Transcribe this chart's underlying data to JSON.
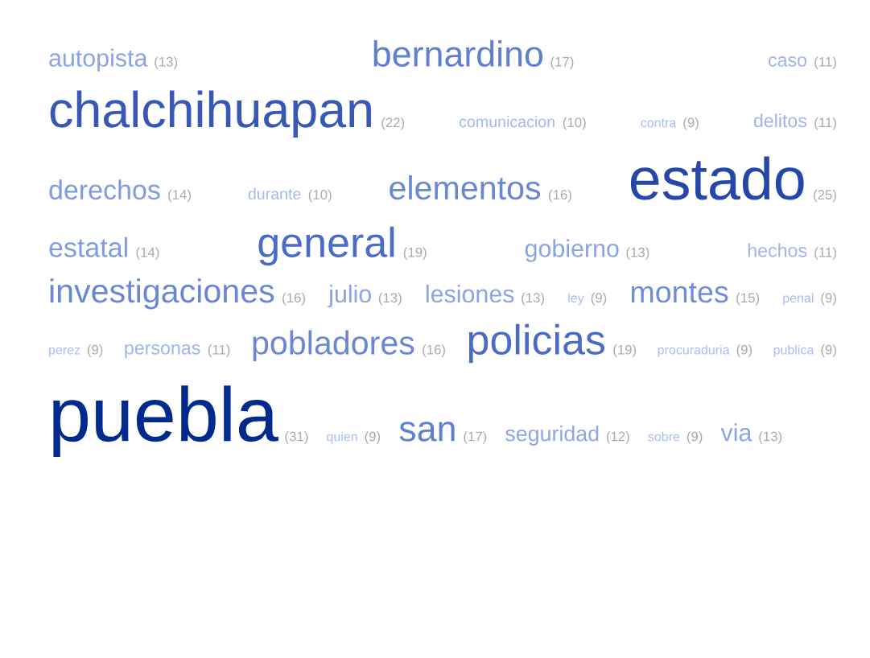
{
  "chart_data": {
    "type": "other",
    "categories": [
      "autopista",
      "bernardino",
      "caso",
      "chalchihuapan",
      "comunicacion",
      "contra",
      "delitos",
      "derechos",
      "durante",
      "elementos",
      "estado",
      "estatal",
      "general",
      "gobierno",
      "hechos",
      "investigaciones",
      "julio",
      "lesiones",
      "ley",
      "montes",
      "penal",
      "perez",
      "personas",
      "pobladores",
      "policias",
      "procuraduria",
      "publica",
      "puebla",
      "quien",
      "san",
      "seguridad",
      "sobre",
      "via"
    ],
    "values": [
      13,
      17,
      11,
      22,
      10,
      9,
      11,
      14,
      10,
      16,
      25,
      14,
      19,
      13,
      11,
      16,
      13,
      13,
      9,
      15,
      9,
      9,
      11,
      16,
      19,
      9,
      9,
      31,
      9,
      17,
      12,
      9,
      13
    ],
    "value_labels": [
      "(13)",
      "(17)",
      "(11)",
      "(22)",
      "(10)",
      "(9)",
      "(11)",
      "(14)",
      "(10)",
      "(16)",
      "(25)",
      "(14)",
      "(19)",
      "(13)",
      "(11)",
      "(16)",
      "(13)",
      "(13)",
      "(9)",
      "(15)",
      "(9)",
      "(9)",
      "(11)",
      "(16)",
      "(19)",
      "(9)",
      "(9)",
      "(31)",
      "(9)",
      "(17)",
      "(12)",
      "(9)",
      "(13)"
    ],
    "colors": [
      "#8aa3e3",
      "#5f7fd0",
      "#9fb4ee",
      "#3758b5",
      "#a3b8f0",
      "#a8bdf5",
      "#9fb4ee",
      "#7f9ade",
      "#a3b8f0",
      "#6a87d4",
      "#2547a8",
      "#7f9ade",
      "#4a6cc6",
      "#8aa3e3",
      "#9fb4ee",
      "#6a87d4",
      "#8aa3e3",
      "#8aa3e3",
      "#a8bdf5",
      "#6f8cd8",
      "#a8bdf5",
      "#a8bdf5",
      "#9fb4ee",
      "#6a87d4",
      "#4a6cc6",
      "#a8bdf5",
      "#a8bdf5",
      "#002a8e",
      "#a8bdf5",
      "#5f7fd0",
      "#8ea6e6",
      "#a8bdf5",
      "#8aa3e3"
    ]
  }
}
